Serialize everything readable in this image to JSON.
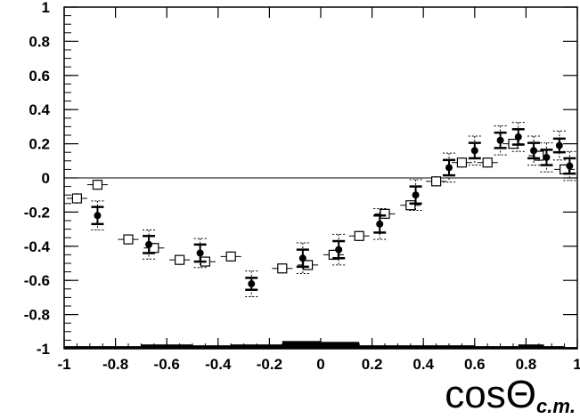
{
  "chart_data": {
    "type": "scatter",
    "xlabel_main": "cosΘ",
    "xlabel_sub": "c.m.",
    "xlim": [
      -1,
      1
    ],
    "ylim": [
      -1,
      1
    ],
    "x_ticks": [
      "-1",
      "-0.8",
      "-0.6",
      "-0.4",
      "-0.2",
      "0",
      "0.2",
      "0.4",
      "0.6",
      "0.8",
      "1"
    ],
    "y_ticks": [
      "1",
      "0.8",
      "0.6",
      "0.4",
      "0.2",
      "0",
      "-0.2",
      "-0.4",
      "-0.6",
      "-0.8",
      "-1"
    ],
    "zero_line": true,
    "series": [
      {
        "marker": "open-square",
        "points": [
          {
            "x": -0.95,
            "y": -0.12,
            "xerr": 0.04,
            "yerr": 0.03
          },
          {
            "x": -0.87,
            "y": -0.04,
            "xerr": 0.04,
            "yerr": 0.03
          },
          {
            "x": -0.75,
            "y": -0.36,
            "xerr": 0.04,
            "yerr": 0.03
          },
          {
            "x": -0.65,
            "y": -0.41,
            "xerr": 0.04,
            "yerr": 0.03
          },
          {
            "x": -0.55,
            "y": -0.48,
            "xerr": 0.04,
            "yerr": 0.03
          },
          {
            "x": -0.45,
            "y": -0.49,
            "xerr": 0.04,
            "yerr": 0.03
          },
          {
            "x": -0.35,
            "y": -0.46,
            "xerr": 0.04,
            "yerr": 0.03
          },
          {
            "x": -0.15,
            "y": -0.53,
            "xerr": 0.04,
            "yerr": 0.03
          },
          {
            "x": -0.05,
            "y": -0.51,
            "xerr": 0.04,
            "yerr": 0.03
          },
          {
            "x": 0.05,
            "y": -0.45,
            "xerr": 0.04,
            "yerr": 0.03
          },
          {
            "x": 0.15,
            "y": -0.34,
            "xerr": 0.04,
            "yerr": 0.03
          },
          {
            "x": 0.25,
            "y": -0.21,
            "xerr": 0.04,
            "yerr": 0.03
          },
          {
            "x": 0.35,
            "y": -0.16,
            "xerr": 0.04,
            "yerr": 0.03
          },
          {
            "x": 0.45,
            "y": -0.02,
            "xerr": 0.04,
            "yerr": 0.03
          },
          {
            "x": 0.55,
            "y": 0.09,
            "xerr": 0.04,
            "yerr": 0.03
          },
          {
            "x": 0.65,
            "y": 0.09,
            "xerr": 0.04,
            "yerr": 0.03
          },
          {
            "x": 0.75,
            "y": 0.2,
            "xerr": 0.04,
            "yerr": 0.03
          },
          {
            "x": 0.85,
            "y": 0.13,
            "xerr": 0.04,
            "yerr": 0.03
          },
          {
            "x": 0.95,
            "y": 0.05,
            "xerr": 0.04,
            "yerr": 0.03
          }
        ]
      },
      {
        "marker": "filled-circle",
        "points": [
          {
            "x": -0.87,
            "y": -0.22,
            "stat": 0.05,
            "syst": 0.085
          },
          {
            "x": -0.67,
            "y": -0.39,
            "stat": 0.05,
            "syst": 0.085
          },
          {
            "x": -0.47,
            "y": -0.44,
            "stat": 0.05,
            "syst": 0.085
          },
          {
            "x": -0.27,
            "y": -0.62,
            "stat": 0.035,
            "syst": 0.075
          },
          {
            "x": -0.07,
            "y": -0.47,
            "stat": 0.05,
            "syst": 0.09
          },
          {
            "x": 0.07,
            "y": -0.42,
            "stat": 0.05,
            "syst": 0.09
          },
          {
            "x": 0.23,
            "y": -0.27,
            "stat": 0.05,
            "syst": 0.09
          },
          {
            "x": 0.37,
            "y": -0.1,
            "stat": 0.05,
            "syst": 0.09
          },
          {
            "x": 0.5,
            "y": 0.06,
            "stat": 0.045,
            "syst": 0.085
          },
          {
            "x": 0.6,
            "y": 0.16,
            "stat": 0.045,
            "syst": 0.085
          },
          {
            "x": 0.7,
            "y": 0.22,
            "stat": 0.045,
            "syst": 0.085
          },
          {
            "x": 0.77,
            "y": 0.24,
            "stat": 0.045,
            "syst": 0.085
          },
          {
            "x": 0.83,
            "y": 0.16,
            "stat": 0.045,
            "syst": 0.085
          },
          {
            "x": 0.88,
            "y": 0.12,
            "stat": 0.045,
            "syst": 0.085
          },
          {
            "x": 0.93,
            "y": 0.19,
            "stat": 0.04,
            "syst": 0.085
          },
          {
            "x": 0.97,
            "y": 0.07,
            "stat": 0.045,
            "syst": 0.085
          }
        ]
      }
    ],
    "band": {
      "baseline": -1,
      "bins": [
        {
          "x0": -1.0,
          "x1": -0.7,
          "y": -0.985
        },
        {
          "x0": -0.7,
          "x1": -0.5,
          "y": -0.975
        },
        {
          "x0": -0.5,
          "x1": -0.35,
          "y": -0.98
        },
        {
          "x0": -0.35,
          "x1": -0.15,
          "y": -0.975
        },
        {
          "x0": -0.15,
          "x1": 0.0,
          "y": -0.955
        },
        {
          "x0": 0.0,
          "x1": 0.15,
          "y": -0.96
        },
        {
          "x0": 0.15,
          "x1": 0.6,
          "y": -0.98
        },
        {
          "x0": 0.6,
          "x1": 0.7,
          "y": -0.985
        },
        {
          "x0": 0.7,
          "x1": 0.77,
          "y": -0.985
        },
        {
          "x0": 0.77,
          "x1": 0.87,
          "y": -0.975
        },
        {
          "x0": 0.87,
          "x1": 0.95,
          "y": -0.985
        },
        {
          "x0": 0.95,
          "x1": 1.0,
          "y": -0.99
        }
      ]
    }
  }
}
